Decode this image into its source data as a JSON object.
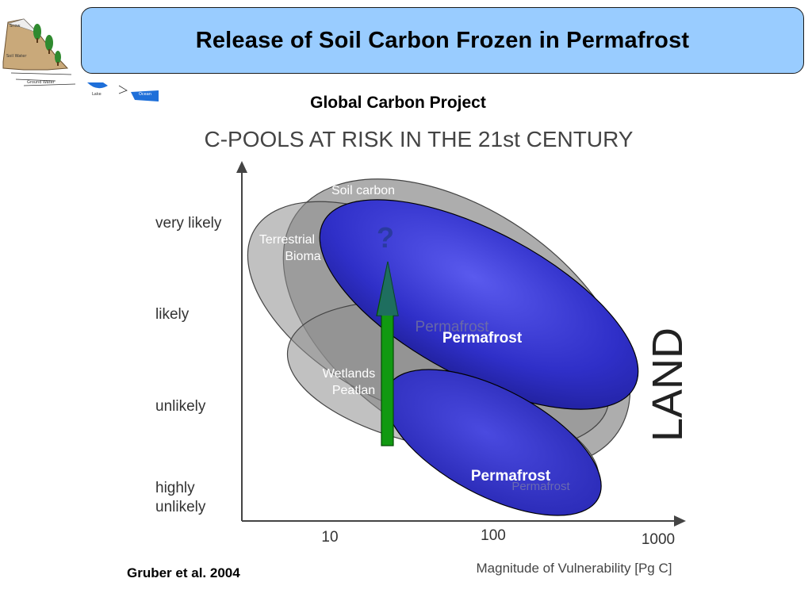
{
  "header": {
    "title": "Release of Soil Carbon Frozen in Permafrost"
  },
  "thumbnail": {
    "labels": [
      "Snow",
      "Soil Water",
      "Ground Water",
      "Lake",
      "Ocean"
    ]
  },
  "subtitle": "Global Carbon Project",
  "citation": "Gruber et al. 2004",
  "diagram": {
    "title": "C-POOLS AT RISK IN THE 21st CENTURY",
    "y_categories": [
      "very likely",
      "likely",
      "unlikely",
      "highly\nunlikely"
    ],
    "x_ticks": [
      "10",
      "100",
      "1000"
    ],
    "xlabel": "Magnitude of Vulnerability [Pg C]",
    "side_label": "LAND",
    "pools": {
      "soil": "Soil carbon",
      "terrestrial": "Terrestrial\nBioma",
      "wetlands": "Wetlands\nPeatlan",
      "permafrost_grey_upper": "Permafrost",
      "permafrost_grey_lower": "Permafrost"
    },
    "highlights": {
      "upper": "Permafrost",
      "lower": "Permafrost",
      "question": "?"
    },
    "colors": {
      "grey_pool": "#8e8e8e",
      "blue_pool": "#3333cc",
      "arrow": "#119911"
    }
  }
}
